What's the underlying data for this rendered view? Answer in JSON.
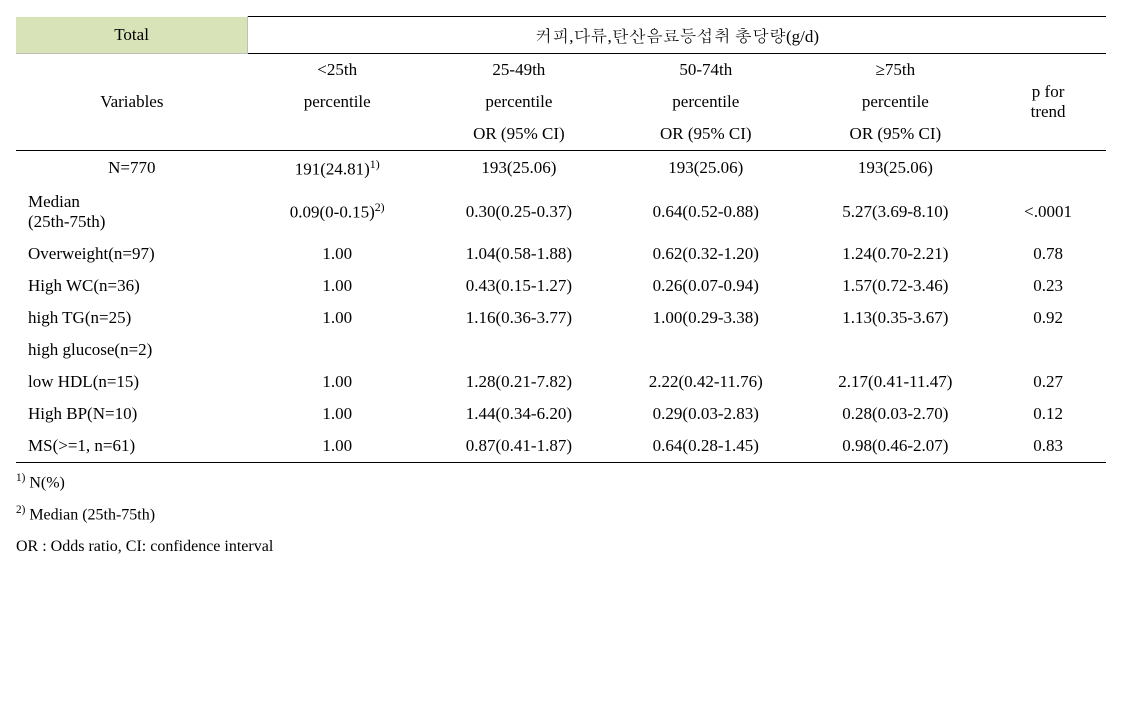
{
  "header": {
    "total_label": "Total",
    "group_title": "커피,다류,탄산음료등섭취 총당량(g/d)",
    "variables_label": "Variables",
    "p_for_trend_label": "p for\ntrend",
    "cols": [
      {
        "top": "<25th",
        "mid": "percentile",
        "bot": ""
      },
      {
        "top": "25-49th",
        "mid": "percentile",
        "bot": "OR (95% CI)"
      },
      {
        "top": "50-74th",
        "mid": "percentile",
        "bot": "OR (95% CI)"
      },
      {
        "top": "≥75th",
        "mid": "percentile",
        "bot": "OR (95% CI)"
      }
    ]
  },
  "rows": [
    {
      "label": "N=770",
      "label_align": "center",
      "c1": "191(24.81)<sup>1)</sup>",
      "c2": "193(25.06)",
      "c3": "193(25.06)",
      "c4": "193(25.06)",
      "p": ""
    },
    {
      "label": "Median<br>(25th-75th)",
      "label_align": "left",
      "c1": "0.09(0-0.15)<sup>2)</sup>",
      "c2": "0.30(0.25-0.37)",
      "c3": "0.64(0.52-0.88)",
      "c4": "5.27(3.69-8.10)",
      "p": "<.0001"
    },
    {
      "label": "Overweight(n=97)",
      "label_align": "left",
      "c1": "1.00",
      "c2": "1.04(0.58-1.88)",
      "c3": "0.62(0.32-1.20)",
      "c4": "1.24(0.70-2.21)",
      "p": "0.78"
    },
    {
      "label": "High WC(n=36)",
      "label_align": "left",
      "c1": "1.00",
      "c2": "0.43(0.15-1.27)",
      "c3": "0.26(0.07-0.94)",
      "c4": "1.57(0.72-3.46)",
      "p": "0.23"
    },
    {
      "label": "high TG(n=25)",
      "label_align": "left",
      "c1": "1.00",
      "c2": "1.16(0.36-3.77)",
      "c3": "1.00(0.29-3.38)",
      "c4": "1.13(0.35-3.67)",
      "p": "0.92"
    },
    {
      "label": "high glucose(n=2)",
      "label_align": "left",
      "c1": "",
      "c2": "",
      "c3": "",
      "c4": "",
      "p": ""
    },
    {
      "label": "low HDL(n=15)",
      "label_align": "left",
      "c1": "1.00",
      "c2": "1.28(0.21-7.82)",
      "c3": "2.22(0.42-11.76)",
      "c4": "2.17(0.41-11.47)",
      "p": "0.27"
    },
    {
      "label": "High BP(N=10)",
      "label_align": "left",
      "c1": "1.00",
      "c2": "1.44(0.34-6.20)",
      "c3": "0.29(0.03-2.83)",
      "c4": "0.28(0.03-2.70)",
      "p": "0.12"
    },
    {
      "label": "MS(>=1, n=61)",
      "label_align": "left",
      "c1": "1.00",
      "c2": "0.87(0.41-1.87)",
      "c3": "0.64(0.28-1.45)",
      "c4": "0.98(0.46-2.07)",
      "p": "0.83"
    }
  ],
  "footnotes": [
    "<sup>1)</sup> N(%)",
    "<sup>2)</sup> Median (25th-75th)",
    "OR : Odds ratio, CI: confidence interval"
  ],
  "colwidths": {
    "label": 220,
    "data": 170,
    "p": 100
  }
}
